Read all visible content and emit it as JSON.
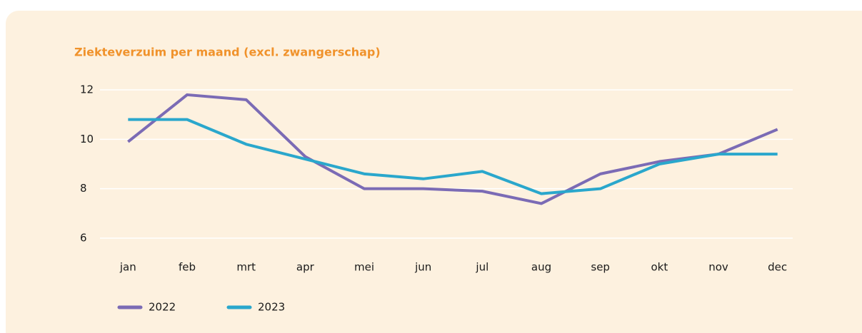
{
  "chart_data": {
    "type": "line",
    "title": "Ziekteverzuim per maand (excl. zwangerschap)",
    "categories": [
      "jan",
      "feb",
      "mrt",
      "apr",
      "mei",
      "jun",
      "jul",
      "aug",
      "sep",
      "okt",
      "nov",
      "dec"
    ],
    "series": [
      {
        "name": "2022",
        "color": "#7b6bb5",
        "values": [
          9.9,
          11.8,
          11.6,
          9.3,
          8.0,
          8.0,
          7.9,
          7.4,
          8.6,
          9.1,
          9.4,
          10.4
        ]
      },
      {
        "name": "2023",
        "color": "#2aa7cc",
        "values": [
          10.8,
          10.8,
          9.8,
          9.2,
          8.6,
          8.4,
          8.7,
          7.8,
          8.0,
          9.0,
          9.4,
          9.4
        ]
      }
    ],
    "ylim": [
      6,
      12
    ],
    "yticks": [
      6,
      8,
      10,
      12
    ],
    "grid": true,
    "legend": "bottom"
  }
}
